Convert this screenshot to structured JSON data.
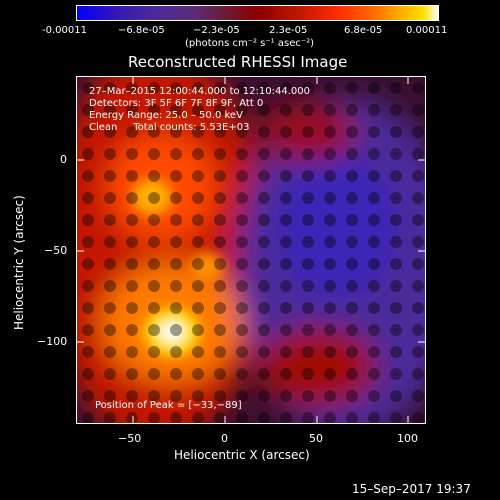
{
  "colorbar": {
    "ticks": [
      "-0.00011",
      "−6.8e-05",
      "−2.3e-05",
      "2.3e-05",
      "6.8e-05",
      "0.00011"
    ],
    "unit_label": "(photons cm⁻² s⁻¹ asec⁻²)"
  },
  "title": "Reconstructed RHESSI Image",
  "annotation": {
    "line1": "27–Mar–2015 12:00:44.000 to 12:10:44.000",
    "line2": "Detectors: 3F 5F 6F 7F 8F 9F, Att 0",
    "line3": "Energy Range: 25.0 – 50.0 keV",
    "line4": "Clean     Total counts: 5.53E+03",
    "peak": "Position of Peak = [−33,−89]"
  },
  "axes": {
    "xlabel": "Heliocentric X (arcsec)",
    "ylabel": "Heliocentric Y (arcsec)",
    "xticks": [
      "−50",
      "0",
      "50",
      "100"
    ],
    "yticks": [
      "0",
      "−50",
      "−100"
    ]
  },
  "timestamp": "15–Sep–2017 19:37",
  "colors": {
    "hot": "#ffd000",
    "mid": "#c21800",
    "dark": "#2a0000",
    "cool": "#4b2b9a",
    "cold": "#2222cc"
  }
}
